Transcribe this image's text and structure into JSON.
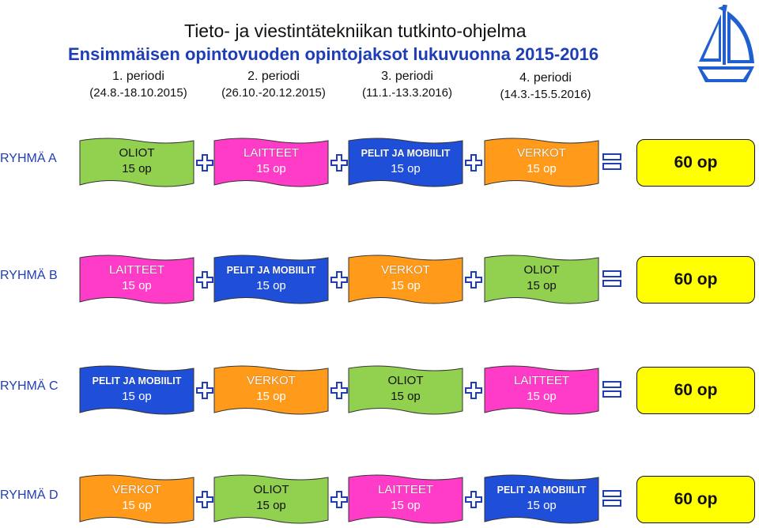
{
  "title": "Tieto- ja viestintätekniikan tutkinto-ohjelma",
  "subtitle": "Ensimmäisen opintovuoden opintojaksot lukuvuonna 2015-2016",
  "periods": [
    {
      "name": "1. periodi",
      "dates": "(24.8.-18.10.2015)"
    },
    {
      "name": "2. periodi",
      "dates": "(26.10.-20.12.2015)"
    },
    {
      "name": "3. periodi",
      "dates": "(11.1.-13.3.2016)"
    },
    {
      "name": "4. periodi",
      "dates": "(14.3.-15.5.2016)"
    }
  ],
  "colors": {
    "green": "#92d050",
    "pink": "#ff3cc8",
    "blue": "#1f4fd8",
    "orange": "#ff9a1a",
    "accent": "#1f3db5",
    "total": "#ffff00"
  },
  "groups": [
    {
      "label": "RYHMÄ A",
      "total": "60 op",
      "courses": [
        {
          "name": "OLIOT",
          "op": "15 op",
          "color": "green"
        },
        {
          "name": "LAITTEET",
          "op": "15 op",
          "color": "pink"
        },
        {
          "name": "PELIT JA MOBIILIT",
          "op": "15 op",
          "color": "blue"
        },
        {
          "name": "VERKOT",
          "op": "15 op",
          "color": "orange"
        }
      ]
    },
    {
      "label": "RYHMÄ B",
      "total": "60 op",
      "courses": [
        {
          "name": "LAITTEET",
          "op": "15 op",
          "color": "pink"
        },
        {
          "name": "PELIT JA MOBIILIT",
          "op": "15 op",
          "color": "blue"
        },
        {
          "name": "VERKOT",
          "op": "15 op",
          "color": "orange"
        },
        {
          "name": "OLIOT",
          "op": "15 op",
          "color": "green"
        }
      ]
    },
    {
      "label": "RYHMÄ C",
      "total": "60 op",
      "courses": [
        {
          "name": "PELIT JA MOBIILIT",
          "op": "15 op",
          "color": "blue"
        },
        {
          "name": "VERKOT",
          "op": "15 op",
          "color": "orange"
        },
        {
          "name": "OLIOT",
          "op": "15 op",
          "color": "green"
        },
        {
          "name": "LAITTEET",
          "op": "15 op",
          "color": "pink"
        }
      ]
    },
    {
      "label": "RYHMÄ D",
      "total": "60 op",
      "courses": [
        {
          "name": "VERKOT",
          "op": "15 op",
          "color": "orange"
        },
        {
          "name": "OLIOT",
          "op": "15 op",
          "color": "green"
        },
        {
          "name": "LAITTEET",
          "op": "15 op",
          "color": "pink"
        },
        {
          "name": "PELIT JA MOBIILIT",
          "op": "15 op",
          "color": "blue"
        }
      ]
    }
  ],
  "icons": {
    "plus": "plus-icon",
    "equals": "equals-icon",
    "logo": "sailboat-icon"
  }
}
